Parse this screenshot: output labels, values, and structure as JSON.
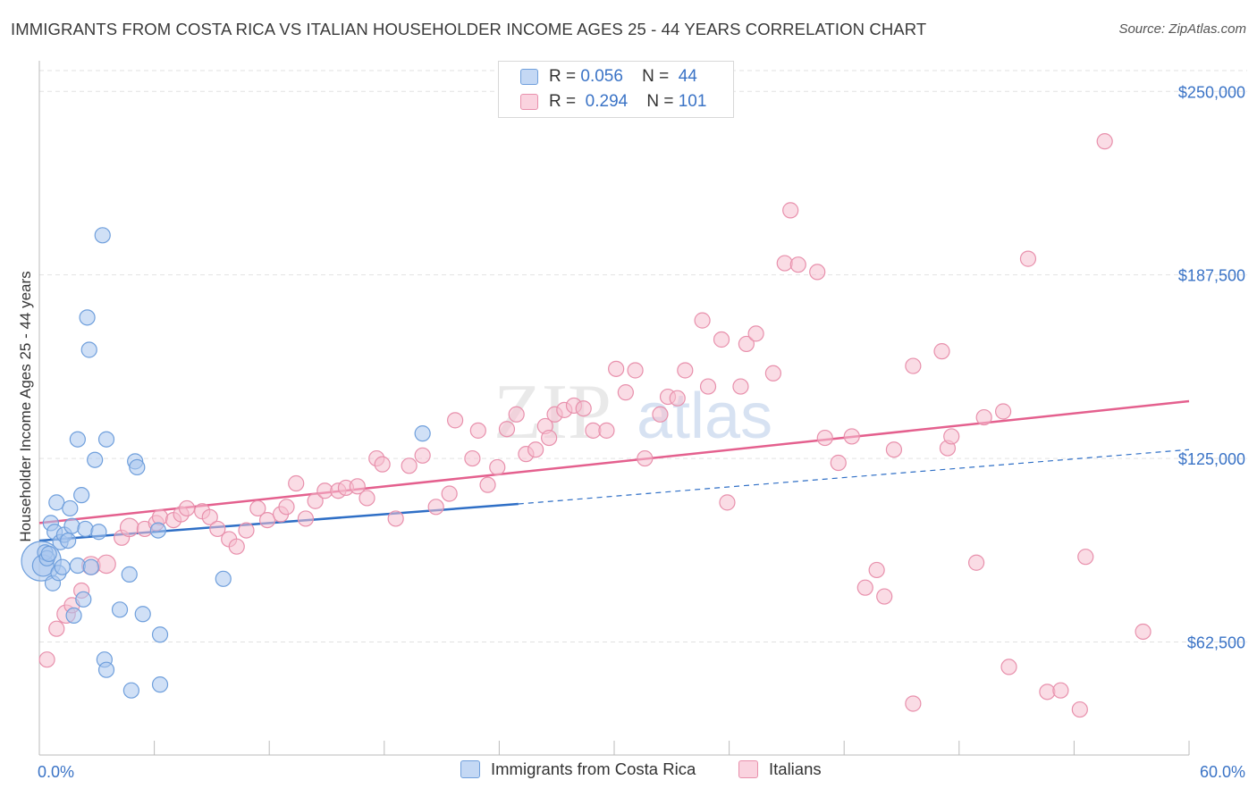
{
  "title": "IMMIGRANTS FROM COSTA RICA VS ITALIAN HOUSEHOLDER INCOME AGES 25 - 44 YEARS CORRELATION CHART",
  "source": "Source: ZipAtlas.com",
  "watermark": {
    "zip": "ZIP",
    "atlas": "atlas"
  },
  "colors": {
    "blue_fill": "#a9c6ef",
    "blue_stroke": "#6f9fdc",
    "blue_line": "#2f6fc6",
    "pink_fill": "#f6c0d0",
    "pink_stroke": "#e890ac",
    "pink_line": "#e4608e",
    "axis_label": "#3a73c6",
    "grid": "#e2e2e2"
  },
  "legend": {
    "rows": [
      {
        "r_label": "R =",
        "r_value": "0.056",
        "n_label": "N =",
        "n_value": "44"
      },
      {
        "r_label": "R =",
        "r_value": "0.294",
        "n_label": "N =",
        "n_value": "101"
      }
    ]
  },
  "bottom_legend": [
    "Immigrants from Costa Rica",
    "Italians"
  ],
  "chart_data": {
    "type": "scatter",
    "title": "IMMIGRANTS FROM COSTA RICA VS ITALIAN HOUSEHOLDER INCOME AGES 25 - 44 YEARS CORRELATION CHART",
    "xlabel": "",
    "ylabel": "Householder Income Ages 25 - 44 years",
    "xlim": [
      0,
      60
    ],
    "ylim": [
      24000,
      258000
    ],
    "x_tick_labels": [
      "0.0%",
      "60.0%"
    ],
    "y_ticks": [
      62500,
      125000,
      187500,
      250000
    ],
    "y_tick_labels": [
      "$62,500",
      "$125,000",
      "$187,500",
      "$250,000"
    ],
    "grid": true,
    "legend_position": "top-center",
    "series": [
      {
        "name": "Immigrants from Costa Rica",
        "color": "#a9c6ef",
        "trend": {
          "x0": 0,
          "y0": 97000,
          "x1": 25,
          "y1": 109500,
          "dashed_to_x": 60,
          "dashed_to_y": 128000
        },
        "points": [
          [
            0.1,
            90000,
            26
          ],
          [
            0.2,
            88500,
            14
          ],
          [
            0.3,
            93000,
            10
          ],
          [
            0.4,
            91000,
            10
          ],
          [
            0.5,
            92500,
            10
          ],
          [
            0.6,
            103000,
            10
          ],
          [
            0.7,
            82500,
            10
          ],
          [
            0.8,
            100000,
            10
          ],
          [
            0.9,
            110000,
            10
          ],
          [
            1.0,
            86000,
            10
          ],
          [
            1.1,
            96500,
            10
          ],
          [
            1.2,
            88000,
            10
          ],
          [
            1.3,
            99000,
            10
          ],
          [
            1.5,
            97000,
            10
          ],
          [
            1.6,
            108000,
            10
          ],
          [
            1.7,
            102000,
            10
          ],
          [
            1.8,
            71500,
            10
          ],
          [
            2.0,
            88500,
            10
          ],
          [
            2.0,
            131500,
            10
          ],
          [
            2.2,
            112500,
            10
          ],
          [
            2.3,
            77000,
            10
          ],
          [
            2.4,
            101000,
            10
          ],
          [
            2.5,
            173000,
            10
          ],
          [
            2.6,
            162000,
            10
          ],
          [
            2.7,
            88000,
            10
          ],
          [
            2.9,
            124500,
            10
          ],
          [
            3.1,
            100000,
            10
          ],
          [
            3.3,
            201000,
            10
          ],
          [
            3.4,
            56500,
            10
          ],
          [
            3.5,
            53000,
            10
          ],
          [
            3.5,
            131500,
            10
          ],
          [
            4.2,
            73500,
            10
          ],
          [
            4.7,
            85500,
            10
          ],
          [
            4.8,
            46000,
            10
          ],
          [
            5.0,
            124000,
            10
          ],
          [
            5.1,
            122000,
            10
          ],
          [
            5.4,
            72000,
            10
          ],
          [
            6.2,
            100500,
            10
          ],
          [
            6.3,
            48000,
            10
          ],
          [
            6.3,
            65000,
            10
          ],
          [
            9.6,
            84000,
            10
          ],
          [
            20.0,
            133500,
            10
          ]
        ]
      },
      {
        "name": "Italians",
        "color": "#f6c0d0",
        "trend": {
          "x0": 0,
          "y0": 103000,
          "x1": 60,
          "y1": 144500
        },
        "points": [
          [
            0.4,
            56500,
            10
          ],
          [
            0.9,
            67000,
            10
          ],
          [
            1.4,
            72000,
            12
          ],
          [
            1.7,
            75000,
            10
          ],
          [
            2.2,
            80000,
            10
          ],
          [
            2.7,
            88500,
            12
          ],
          [
            3.5,
            89000,
            12
          ],
          [
            4.3,
            98000,
            10
          ],
          [
            4.7,
            101500,
            12
          ],
          [
            5.5,
            101000,
            10
          ],
          [
            6.1,
            103000,
            10
          ],
          [
            6.3,
            105000,
            10
          ],
          [
            7.0,
            104000,
            10
          ],
          [
            7.4,
            106000,
            10
          ],
          [
            7.7,
            108000,
            10
          ],
          [
            8.5,
            107000,
            10
          ],
          [
            8.9,
            105000,
            10
          ],
          [
            9.3,
            101000,
            10
          ],
          [
            9.9,
            97500,
            10
          ],
          [
            10.3,
            95000,
            10
          ],
          [
            10.8,
            100500,
            10
          ],
          [
            11.4,
            108000,
            10
          ],
          [
            11.9,
            104000,
            10
          ],
          [
            12.6,
            106000,
            10
          ],
          [
            12.9,
            108500,
            10
          ],
          [
            13.4,
            116500,
            10
          ],
          [
            13.9,
            104500,
            10
          ],
          [
            14.4,
            110500,
            10
          ],
          [
            14.9,
            114000,
            10
          ],
          [
            15.6,
            114000,
            10
          ],
          [
            16.0,
            115000,
            10
          ],
          [
            16.6,
            115500,
            10
          ],
          [
            17.1,
            111500,
            10
          ],
          [
            17.6,
            125000,
            10
          ],
          [
            17.9,
            123000,
            10
          ],
          [
            18.6,
            104500,
            10
          ],
          [
            19.3,
            122500,
            10
          ],
          [
            20.0,
            126000,
            10
          ],
          [
            20.7,
            108500,
            10
          ],
          [
            21.4,
            113000,
            10
          ],
          [
            21.7,
            138000,
            10
          ],
          [
            22.6,
            125000,
            10
          ],
          [
            22.9,
            134500,
            10
          ],
          [
            23.4,
            116000,
            10
          ],
          [
            23.9,
            122000,
            10
          ],
          [
            24.4,
            135000,
            10
          ],
          [
            24.9,
            140000,
            10
          ],
          [
            25.4,
            126500,
            10
          ],
          [
            25.9,
            128000,
            10
          ],
          [
            26.4,
            136000,
            10
          ],
          [
            26.6,
            132000,
            10
          ],
          [
            26.9,
            140000,
            10
          ],
          [
            27.4,
            141500,
            10
          ],
          [
            27.9,
            143000,
            10
          ],
          [
            28.4,
            142000,
            10
          ],
          [
            28.9,
            134500,
            10
          ],
          [
            29.6,
            134500,
            10
          ],
          [
            30.1,
            155500,
            10
          ],
          [
            30.6,
            147500,
            10
          ],
          [
            31.1,
            155000,
            10
          ],
          [
            31.6,
            125000,
            10
          ],
          [
            32.4,
            140000,
            10
          ],
          [
            32.8,
            146000,
            10
          ],
          [
            33.3,
            145500,
            10
          ],
          [
            33.7,
            155000,
            10
          ],
          [
            34.6,
            172000,
            10
          ],
          [
            34.9,
            149500,
            10
          ],
          [
            35.6,
            165500,
            10
          ],
          [
            35.9,
            110000,
            10
          ],
          [
            36.6,
            149500,
            10
          ],
          [
            36.9,
            164000,
            10
          ],
          [
            37.4,
            167500,
            10
          ],
          [
            38.3,
            154000,
            10
          ],
          [
            38.9,
            191500,
            10
          ],
          [
            39.2,
            209500,
            10
          ],
          [
            39.6,
            191000,
            10
          ],
          [
            40.6,
            188500,
            10
          ],
          [
            41.0,
            132000,
            10
          ],
          [
            41.7,
            123500,
            10
          ],
          [
            42.4,
            132500,
            10
          ],
          [
            43.1,
            81000,
            10
          ],
          [
            43.7,
            87000,
            10
          ],
          [
            44.1,
            78000,
            10
          ],
          [
            44.6,
            128000,
            10
          ],
          [
            45.6,
            41500,
            10
          ],
          [
            45.6,
            156500,
            10
          ],
          [
            47.1,
            161500,
            10
          ],
          [
            47.4,
            128500,
            10
          ],
          [
            47.6,
            132500,
            10
          ],
          [
            48.9,
            89500,
            10
          ],
          [
            49.3,
            139000,
            10
          ],
          [
            50.3,
            141000,
            10
          ],
          [
            50.6,
            54000,
            10
          ],
          [
            51.6,
            193000,
            10
          ],
          [
            52.6,
            45500,
            10
          ],
          [
            53.3,
            46000,
            10
          ],
          [
            54.3,
            39500,
            10
          ],
          [
            54.6,
            91500,
            10
          ],
          [
            55.6,
            233000,
            10
          ],
          [
            57.6,
            66000,
            10
          ]
        ]
      }
    ]
  }
}
